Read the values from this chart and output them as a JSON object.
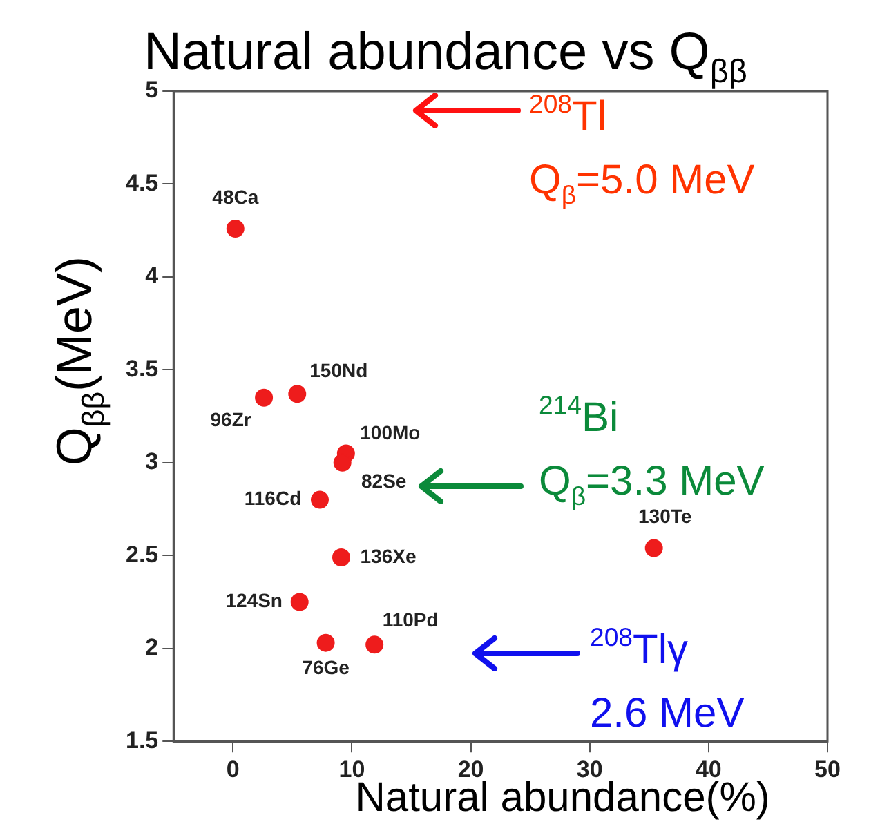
{
  "chart_data": {
    "type": "scatter",
    "title": "Natural abundance vs Q$_{ββ}$",
    "xlabel": "Natural abundance(%)",
    "ylabel": "Q$_{ββ}$(MeV)",
    "series": [
      {
        "color": "#ee1c1c",
        "x": [
          0.2,
          5.4,
          2.6,
          9.5,
          9.2,
          7.3,
          9.1,
          35.4,
          5.6,
          11.9,
          7.8
        ],
        "values": [
          4.26,
          3.37,
          3.35,
          3.05,
          3.0,
          2.8,
          2.49,
          2.54,
          2.25,
          2.02,
          2.03
        ]
      }
    ],
    "xlim": [
      -5,
      50
    ],
    "xticks": [
      0,
      10,
      20,
      30,
      40,
      50
    ],
    "ylim": [
      1.5,
      5
    ],
    "yticks": [
      1.5,
      2,
      2.5,
      3,
      3.5,
      4,
      4.5,
      5
    ],
    "grid": false,
    "legend": false,
    "marker": "circle",
    "annotations": [
      {
        "text": "48Ca",
        "x": 0.2,
        "y": 4.26
      },
      {
        "text": "150Nd",
        "x": 5.4,
        "y": 3.37
      },
      {
        "text": "96Zr",
        "x": 2.6,
        "y": 3.35
      },
      {
        "text": "100Mo",
        "x": 9.5,
        "y": 3.05
      },
      {
        "text": "82Se",
        "x": 9.2,
        "y": 3.0
      },
      {
        "text": "116Cd",
        "x": 7.3,
        "y": 2.8
      },
      {
        "text": "136Xe",
        "x": 9.1,
        "y": 2.49
      },
      {
        "text": "130Te",
        "x": 35.4,
        "y": 2.54
      },
      {
        "text": "124Sn",
        "x": 5.6,
        "y": 2.25
      },
      {
        "text": "110Pd",
        "x": 11.9,
        "y": 2.02
      },
      {
        "text": "76Ge",
        "x": 7.8,
        "y": 2.03
      },
      "$^{208}$Tl\nQ$_{β}$=5.0 MeV",
      "$^{214}$Bi\nQ$_{β}$=3.3 MeV",
      "$^{208}$Tlγ\n2.6 MeV"
    ]
  }
}
